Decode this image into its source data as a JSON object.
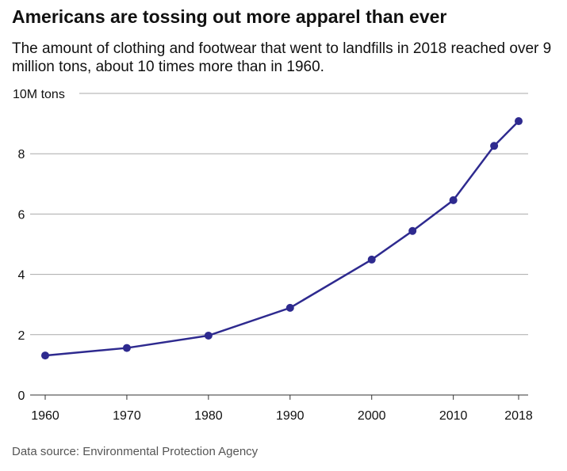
{
  "title": "Americans are tossing out more apparel than ever",
  "subtitle": "The amount of clothing and footwear that went to landfills in 2018 reached over 9 million tons, about 10 times more than in 1960.",
  "source": "Data source: Environmental Protection Agency",
  "chart_data": {
    "type": "line",
    "title": "Americans are tossing out more apparel than ever",
    "x": [
      1960,
      1970,
      1980,
      1990,
      2000,
      2005,
      2010,
      2015,
      2018
    ],
    "values": [
      1.31,
      1.56,
      1.97,
      2.89,
      4.49,
      5.44,
      6.46,
      8.26,
      9.08
    ],
    "xticks": [
      "1960",
      "1970",
      "1980",
      "1990",
      "2000",
      "2010",
      "2018"
    ],
    "yticks": [
      "0",
      "2",
      "4",
      "6",
      "8",
      "10M tons"
    ],
    "ylim": [
      0,
      10
    ],
    "xlim": [
      1960,
      2018
    ],
    "grid": true,
    "color": "#2e2a8f"
  }
}
